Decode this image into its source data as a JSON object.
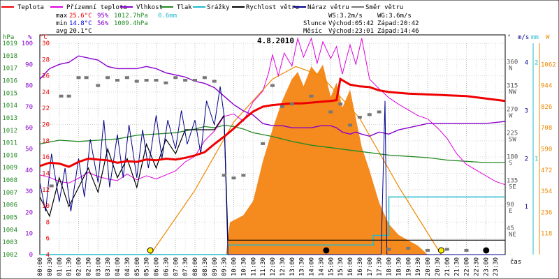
{
  "chart_data": {
    "type": "line",
    "title": "4.8.2010",
    "legend": [
      {
        "label": "Teplota",
        "color": "#ee0000"
      },
      {
        "label": "Přízemní teplota",
        "color": "#dd00dd"
      },
      {
        "label": "Vlhkost",
        "color": "#8800cc"
      },
      {
        "label": "Tlak",
        "color": "#228822"
      },
      {
        "label": "Srážky",
        "color": "#22bbcc"
      },
      {
        "label": "Rychlost větru",
        "color": "#000000"
      },
      {
        "label": "Náraz větru",
        "color": "#000088"
      },
      {
        "label": "Směr větru",
        "color": "#777777"
      }
    ],
    "stats": {
      "max_label": "max",
      "max_temp": "25.6°C",
      "max_hum": "95%",
      "max_press": "1012.7hPa",
      "rain": "0.6mm",
      "min_label": "min",
      "min_temp": "14.8°C",
      "min_hum": "56%",
      "min_press": "1009.4hPa",
      "avg_label": "avg",
      "avg_temp": "20.1°C"
    },
    "wind_info": {
      "ws": "WS:3.2m/s",
      "wg": "WG:3.6m/s"
    },
    "sun": {
      "label": "Slunce",
      "rise": "Východ:05:42",
      "set": "Západ:20:42"
    },
    "moon": {
      "label": "Měsíc",
      "rise": "Východ:23:01",
      "set": "Západ:14:46"
    },
    "axis_units": {
      "press": "hPa",
      "hum": "%",
      "temp": "°C",
      "dir": "°",
      "wind": "m/s",
      "rain": "mm",
      "solar": "W"
    },
    "x_axis_label": "čas",
    "x_ticks": [
      "00:00",
      "00:30",
      "01:00",
      "01:30",
      "02:00",
      "02:30",
      "03:00",
      "03:30",
      "04:00",
      "04:30",
      "05:00",
      "05:30",
      "06:00",
      "06:30",
      "07:00",
      "07:30",
      "08:00",
      "08:30",
      "09:00",
      "09:30",
      "10:00",
      "10:30",
      "11:00",
      "11:30",
      "12:00",
      "12:30",
      "13:00",
      "13:30",
      "14:00",
      "14:30",
      "15:00",
      "15:30",
      "16:00",
      "16:30",
      "17:00",
      "17:30",
      "18:00",
      "18:30",
      "19:00",
      "19:30",
      "20:00",
      "20:30",
      "21:00",
      "21:30",
      "22:00",
      "22:30",
      "23:00",
      "23:30"
    ],
    "press_ticks": [
      "1019",
      "1018",
      "1017",
      "1016",
      "1015",
      "1014",
      "1013",
      "1012",
      "1011",
      "1010",
      "1009",
      "1008",
      "1007",
      "1006",
      "1005",
      "1004",
      "1003",
      "1002"
    ],
    "hum_ticks": [
      "100",
      "90",
      "80",
      "70",
      "60",
      "50",
      "40",
      "30",
      "20",
      "10",
      "0"
    ],
    "temp_ticks": [
      "30",
      "28",
      "26",
      "24",
      "22",
      "20",
      "18",
      "16",
      "14",
      "12",
      "10",
      "8",
      "6",
      "4"
    ],
    "dir_ticks": [
      {
        "v": "360",
        "d": "N"
      },
      {
        "v": "315",
        "d": "NW"
      },
      {
        "v": "270",
        "d": "W"
      },
      {
        "v": "225",
        "d": "SW"
      },
      {
        "v": "180",
        "d": "S"
      },
      {
        "v": "135",
        "d": "SE"
      },
      {
        "v": "90",
        "d": "E"
      },
      {
        "v": "45",
        "d": "NE"
      }
    ],
    "wind_ticks": [
      "4",
      "3",
      "2",
      "1"
    ],
    "rain_ticks": [
      "2",
      "1"
    ],
    "solar_ticks": [
      "1062",
      "944",
      "826",
      "708",
      "590",
      "472",
      "354",
      "236",
      "118"
    ],
    "ylim_temp": [
      4,
      30
    ],
    "ylim_hum": [
      0,
      100
    ],
    "ylim_press": [
      1002,
      1019
    ],
    "ylim_wind": [
      0,
      4.4
    ],
    "ylim_solar": [
      0,
      1180
    ],
    "series": {
      "Teplota": [
        [
          0,
          14.9
        ],
        [
          0.5,
          15.3
        ],
        [
          1,
          15.2
        ],
        [
          1.5,
          14.8
        ],
        [
          2,
          15.4
        ],
        [
          2.5,
          15.8
        ],
        [
          3,
          15.7
        ],
        [
          3.5,
          15.6
        ],
        [
          4,
          15.3
        ],
        [
          4.5,
          15.5
        ],
        [
          5,
          15.4
        ],
        [
          5.5,
          15.7
        ],
        [
          6,
          15.6
        ],
        [
          6.5,
          15.8
        ],
        [
          7,
          15.7
        ],
        [
          7.5,
          15.9
        ],
        [
          8,
          16.2
        ],
        [
          8.5,
          16.6
        ],
        [
          9,
          17.6
        ],
        [
          9.5,
          18.5
        ],
        [
          10,
          19.5
        ],
        [
          10.5,
          20.6
        ],
        [
          11,
          21.6
        ],
        [
          11.5,
          22.2
        ],
        [
          12,
          22.4
        ],
        [
          12.5,
          22.5
        ],
        [
          13,
          22.6
        ],
        [
          13.5,
          22.6
        ],
        [
          14,
          22.7
        ],
        [
          14.5,
          22.8
        ],
        [
          15,
          22.9
        ],
        [
          15.3,
          23.0
        ],
        [
          15.5,
          25.6
        ],
        [
          16,
          24.9
        ],
        [
          16.5,
          24.7
        ],
        [
          17,
          24.6
        ],
        [
          17.5,
          24.2
        ],
        [
          18,
          24.0
        ],
        [
          19,
          23.8
        ],
        [
          20,
          23.7
        ],
        [
          21,
          23.6
        ],
        [
          22,
          23.5
        ],
        [
          23,
          23.2
        ],
        [
          24,
          22.9
        ]
      ],
      "Přízemní teplota": [
        [
          0,
          13.8
        ],
        [
          0.5,
          13.5
        ],
        [
          1,
          13.0
        ],
        [
          1.5,
          12.8
        ],
        [
          2,
          13.4
        ],
        [
          2.5,
          14.1
        ],
        [
          3,
          13.6
        ],
        [
          3.5,
          13.3
        ],
        [
          4,
          13.1
        ],
        [
          4.5,
          13.9
        ],
        [
          5,
          13.2
        ],
        [
          5.5,
          13.7
        ],
        [
          6,
          13.3
        ],
        [
          6.5,
          13.8
        ],
        [
          7,
          14.3
        ],
        [
          7.5,
          15.4
        ],
        [
          8,
          16.1
        ],
        [
          8.5,
          18.0
        ],
        [
          9,
          19.2
        ],
        [
          9.5,
          21.0
        ],
        [
          10,
          21.3
        ],
        [
          10.5,
          20.4
        ],
        [
          11,
          22.8
        ],
        [
          11.5,
          24.1
        ],
        [
          11.8,
          26.4
        ],
        [
          12,
          28.6
        ],
        [
          12.3,
          26.0
        ],
        [
          12.6,
          28.8
        ],
        [
          13,
          27.2
        ],
        [
          13.3,
          30.6
        ],
        [
          13.6,
          28.3
        ],
        [
          14,
          30.6
        ],
        [
          14.3,
          27.5
        ],
        [
          14.6,
          30.2
        ],
        [
          15,
          28.1
        ],
        [
          15.3,
          29.6
        ],
        [
          15.6,
          26.2
        ],
        [
          16,
          29.8
        ],
        [
          16.3,
          27.4
        ],
        [
          16.6,
          30.6
        ],
        [
          17,
          25.6
        ],
        [
          17.5,
          24.4
        ],
        [
          18,
          23.3
        ],
        [
          18.5,
          22.5
        ],
        [
          19,
          21.8
        ],
        [
          19.5,
          21.1
        ],
        [
          20,
          20.7
        ],
        [
          20.5,
          19.6
        ],
        [
          21,
          18.3
        ],
        [
          21.5,
          16.4
        ],
        [
          22,
          15.1
        ],
        [
          22.5,
          14.4
        ],
        [
          23,
          13.7
        ],
        [
          23.5,
          13.0
        ],
        [
          24,
          12.6
        ]
      ],
      "Vlhkost": [
        [
          0,
          83
        ],
        [
          0.5,
          88
        ],
        [
          1,
          90
        ],
        [
          1.5,
          91
        ],
        [
          2,
          94
        ],
        [
          2.5,
          93
        ],
        [
          3,
          92
        ],
        [
          3.5,
          89
        ],
        [
          4,
          88
        ],
        [
          4.5,
          88
        ],
        [
          5,
          88
        ],
        [
          5.5,
          89
        ],
        [
          6,
          88
        ],
        [
          6.5,
          86
        ],
        [
          7,
          85
        ],
        [
          7.5,
          84
        ],
        [
          8,
          82
        ],
        [
          8.5,
          81
        ],
        [
          9,
          79
        ],
        [
          9.5,
          75
        ],
        [
          10,
          71
        ],
        [
          10.5,
          68
        ],
        [
          11,
          66
        ],
        [
          11.5,
          62
        ],
        [
          12,
          61
        ],
        [
          12.5,
          61
        ],
        [
          13,
          60
        ],
        [
          13.5,
          60
        ],
        [
          14,
          60
        ],
        [
          14.5,
          61
        ],
        [
          15,
          61
        ],
        [
          15.3,
          60
        ],
        [
          15.6,
          58
        ],
        [
          16,
          57
        ],
        [
          16.3,
          58
        ],
        [
          16.6,
          57
        ],
        [
          17,
          56
        ],
        [
          17.5,
          58
        ],
        [
          18,
          57
        ],
        [
          18.5,
          59
        ],
        [
          19,
          60
        ],
        [
          19.5,
          61
        ],
        [
          20,
          62
        ],
        [
          21,
          62
        ],
        [
          22,
          62
        ],
        [
          23,
          62
        ],
        [
          24,
          63
        ]
      ],
      "Tlak": [
        [
          0,
          1010.9
        ],
        [
          1,
          1011.2
        ],
        [
          2,
          1011.1
        ],
        [
          3,
          1011.2
        ],
        [
          4,
          1011.3
        ],
        [
          5,
          1011.6
        ],
        [
          6,
          1011.7
        ],
        [
          7,
          1011.8
        ],
        [
          8,
          1012.1
        ],
        [
          8.5,
          1012.3
        ],
        [
          9,
          1012.2
        ],
        [
          9.5,
          1012.4
        ],
        [
          10,
          1012.3
        ],
        [
          10.5,
          1012.1
        ],
        [
          11,
          1011.8
        ],
        [
          12,
          1011.5
        ],
        [
          13,
          1011.1
        ],
        [
          14,
          1010.8
        ],
        [
          15,
          1010.6
        ],
        [
          16,
          1010.4
        ],
        [
          17,
          1010.2
        ],
        [
          18,
          1010.0
        ],
        [
          19,
          1009.9
        ],
        [
          20,
          1009.8
        ],
        [
          21,
          1009.6
        ],
        [
          22,
          1009.5
        ],
        [
          23,
          1009.4
        ],
        [
          24,
          1009.4
        ]
      ],
      "Srážky": [
        [
          0,
          0
        ],
        [
          9.7,
          0
        ],
        [
          9.7,
          0.1
        ],
        [
          17.2,
          0.1
        ],
        [
          17.2,
          0.2
        ],
        [
          18,
          0.2
        ],
        [
          18,
          0.6
        ],
        [
          24,
          0.6
        ]
      ],
      "Rychlost větru": [
        [
          0,
          1.2
        ],
        [
          0.5,
          0.8
        ],
        [
          1,
          1.6
        ],
        [
          1.5,
          1.0
        ],
        [
          2,
          1.4
        ],
        [
          2.5,
          1.8
        ],
        [
          3,
          1.3
        ],
        [
          3.5,
          2.2
        ],
        [
          4,
          1.6
        ],
        [
          4.5,
          2.0
        ],
        [
          5,
          1.4
        ],
        [
          5.5,
          2.3
        ],
        [
          6,
          1.8
        ],
        [
          6.5,
          2.4
        ],
        [
          7,
          2.1
        ],
        [
          7.5,
          2.6
        ],
        [
          8,
          2.6
        ],
        [
          8.5,
          2.6
        ],
        [
          9,
          2.6
        ],
        [
          9.5,
          2.9
        ],
        [
          9.7,
          0.3
        ],
        [
          10,
          0.3
        ],
        [
          17.5,
          0.3
        ],
        [
          17.8,
          0.3
        ],
        [
          18,
          0.3
        ],
        [
          24,
          0.3
        ]
      ],
      "Náraz větru": [
        [
          0,
          1.5
        ],
        [
          0.3,
          0.9
        ],
        [
          0.6,
          2.1
        ],
        [
          1,
          1.1
        ],
        [
          1.3,
          1.8
        ],
        [
          1.6,
          0.9
        ],
        [
          2,
          2.0
        ],
        [
          2.3,
          1.2
        ],
        [
          2.6,
          2.4
        ],
        [
          3,
          1.5
        ],
        [
          3.3,
          2.8
        ],
        [
          3.6,
          1.4
        ],
        [
          4,
          2.5
        ],
        [
          4.3,
          1.6
        ],
        [
          4.6,
          2.7
        ],
        [
          5,
          1.6
        ],
        [
          5.3,
          2.6
        ],
        [
          5.6,
          1.8
        ],
        [
          6,
          2.9
        ],
        [
          6.3,
          2.0
        ],
        [
          6.6,
          2.8
        ],
        [
          7,
          2.2
        ],
        [
          7.3,
          3.0
        ],
        [
          7.6,
          2.3
        ],
        [
          8,
          2.8
        ],
        [
          8.3,
          2.1
        ],
        [
          8.6,
          3.2
        ],
        [
          9,
          2.7
        ],
        [
          9.3,
          3.5
        ],
        [
          9.5,
          2.9
        ],
        [
          9.7,
          0
        ],
        [
          17.6,
          0
        ],
        [
          17.8,
          3.2
        ],
        [
          17.9,
          0
        ],
        [
          24,
          0
        ]
      ],
      "Solar": [
        [
          0,
          0
        ],
        [
          9.6,
          0
        ],
        [
          9.8,
          180
        ],
        [
          10.5,
          220
        ],
        [
          11,
          300
        ],
        [
          11.5,
          520
        ],
        [
          12,
          700
        ],
        [
          12.5,
          860
        ],
        [
          13,
          980
        ],
        [
          13.3,
          1020
        ],
        [
          13.6,
          940
        ],
        [
          14,
          1050
        ],
        [
          14.3,
          1010
        ],
        [
          14.6,
          1060
        ],
        [
          15,
          880
        ],
        [
          15.3,
          960
        ],
        [
          15.6,
          820
        ],
        [
          16,
          920
        ],
        [
          16.3,
          760
        ],
        [
          16.6,
          600
        ],
        [
          17,
          470
        ],
        [
          17.5,
          290
        ],
        [
          18,
          170
        ],
        [
          18.5,
          110
        ],
        [
          19,
          80
        ],
        [
          19.5,
          50
        ],
        [
          20,
          0
        ],
        [
          24,
          0
        ]
      ],
      "Clear-sky": [
        [
          5.7,
          0
        ],
        [
          8,
          360
        ],
        [
          10,
          740
        ],
        [
          12,
          980
        ],
        [
          13.2,
          1050
        ],
        [
          14.5,
          1000
        ],
        [
          16.5,
          760
        ],
        [
          18.5,
          380
        ],
        [
          20.7,
          0
        ]
      ],
      "Směr větru": [
        [
          0.6,
          130
        ],
        [
          1.1,
          300
        ],
        [
          1.5,
          300
        ],
        [
          2,
          335
        ],
        [
          2.4,
          335
        ],
        [
          3,
          320
        ],
        [
          3.5,
          335
        ],
        [
          4,
          330
        ],
        [
          4.5,
          335
        ],
        [
          5,
          328
        ],
        [
          5.5,
          330
        ],
        [
          6,
          330
        ],
        [
          6.5,
          325
        ],
        [
          7,
          335
        ],
        [
          7.5,
          330
        ],
        [
          8,
          330
        ],
        [
          8.5,
          335
        ],
        [
          9,
          328
        ],
        [
          9.5,
          150
        ],
        [
          10,
          145
        ],
        [
          10.5,
          150
        ],
        [
          11.5,
          210
        ],
        [
          12,
          320
        ],
        [
          12.5,
          280
        ],
        [
          13,
          285
        ],
        [
          14,
          300
        ],
        [
          15,
          270
        ],
        [
          15.5,
          285
        ],
        [
          16,
          245
        ],
        [
          16.5,
          260
        ],
        [
          17,
          265
        ],
        [
          17.5,
          270
        ],
        [
          18,
          10
        ],
        [
          19,
          12
        ],
        [
          20,
          8
        ],
        [
          21,
          10
        ],
        [
          22,
          8
        ],
        [
          23,
          10
        ]
      ]
    }
  }
}
